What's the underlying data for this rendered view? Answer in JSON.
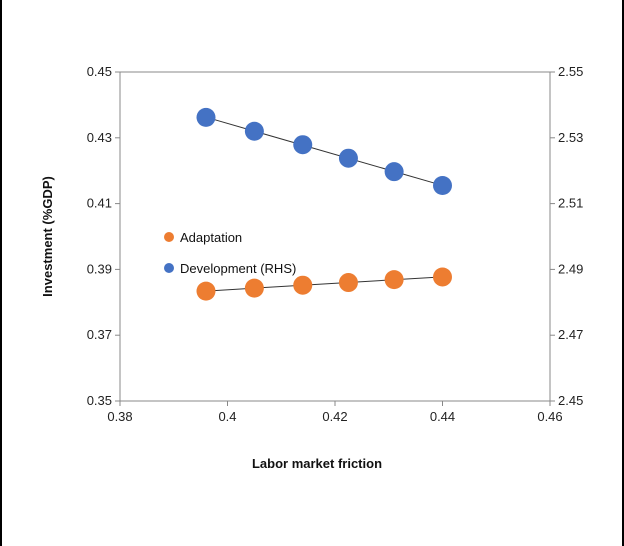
{
  "chart_data": {
    "type": "scatter",
    "title": "",
    "xlabel": "Labor market friction",
    "ylabel": "Investment (%GDP)",
    "y2label": "",
    "xlim": [
      0.38,
      0.46
    ],
    "ylim": [
      0.35,
      0.45
    ],
    "y2lim": [
      2.45,
      2.55
    ],
    "x_ticks": [
      0.38,
      0.4,
      0.42,
      0.44,
      0.46
    ],
    "x_tick_labels": [
      "0.38",
      "0.4",
      "0.42",
      "0.44",
      "0.46"
    ],
    "y_ticks": [
      0.35,
      0.37,
      0.39,
      0.41,
      0.43,
      0.45
    ],
    "y_tick_labels": [
      "0.35",
      "0.37",
      "0.39",
      "0.41",
      "0.43",
      "0.45"
    ],
    "y2_ticks": [
      2.45,
      2.47,
      2.49,
      2.51,
      2.53,
      2.55
    ],
    "y2_tick_labels": [
      "2.45",
      "2.47",
      "2.49",
      "2.51",
      "2.53",
      "2.55"
    ],
    "grid": false,
    "legend_position": "left-center",
    "series": [
      {
        "name": "Adaptation",
        "axis": "left",
        "color": "#ED7D31",
        "trendline": true,
        "x": [
          0.396,
          0.405,
          0.414,
          0.4225,
          0.431,
          0.44
        ],
        "y": [
          0.3834,
          0.3843,
          0.3852,
          0.386,
          0.3869,
          0.3877
        ]
      },
      {
        "name": "Development (RHS)",
        "axis": "right",
        "color": "#4472C4",
        "trendline": true,
        "x": [
          0.396,
          0.405,
          0.414,
          0.4225,
          0.431,
          0.44
        ],
        "y": [
          2.5362,
          2.532,
          2.5279,
          2.5238,
          2.5197,
          2.5155
        ]
      }
    ]
  }
}
